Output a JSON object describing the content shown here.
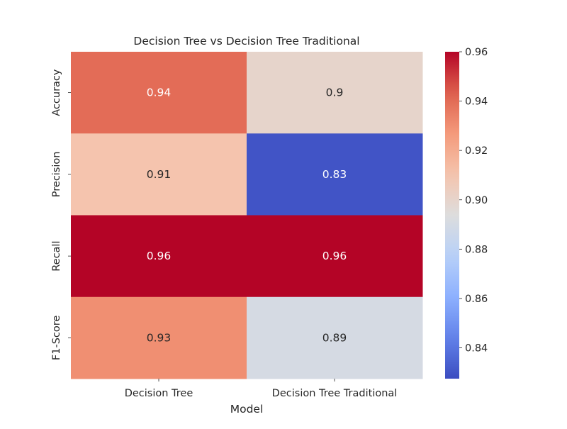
{
  "chart_data": {
    "type": "heatmap",
    "title": "Decision Tree vs Decision Tree Traditional",
    "xlabel": "Model",
    "ylabel": "",
    "x_categories": [
      "Decision Tree",
      "Decision Tree Traditional"
    ],
    "y_categories": [
      "Accuracy",
      "Precision",
      "Recall",
      "F1-Score"
    ],
    "values": [
      [
        0.94,
        0.9
      ],
      [
        0.91,
        0.83
      ],
      [
        0.96,
        0.96
      ],
      [
        0.93,
        0.89
      ]
    ],
    "value_labels": [
      [
        "0.94",
        "0.9"
      ],
      [
        "0.91",
        "0.83"
      ],
      [
        "0.96",
        "0.96"
      ],
      [
        "0.93",
        "0.89"
      ]
    ],
    "colormap": "coolwarm",
    "vmin": 0.8275,
    "vmax": 0.96,
    "colorbar_ticks": [
      "0.84",
      "0.86",
      "0.88",
      "0.90",
      "0.92",
      "0.94",
      "0.96"
    ],
    "colorbar_tick_values": [
      0.84,
      0.86,
      0.88,
      0.9,
      0.92,
      0.94,
      0.96
    ],
    "grid": false,
    "legend": "colorbar-right"
  }
}
